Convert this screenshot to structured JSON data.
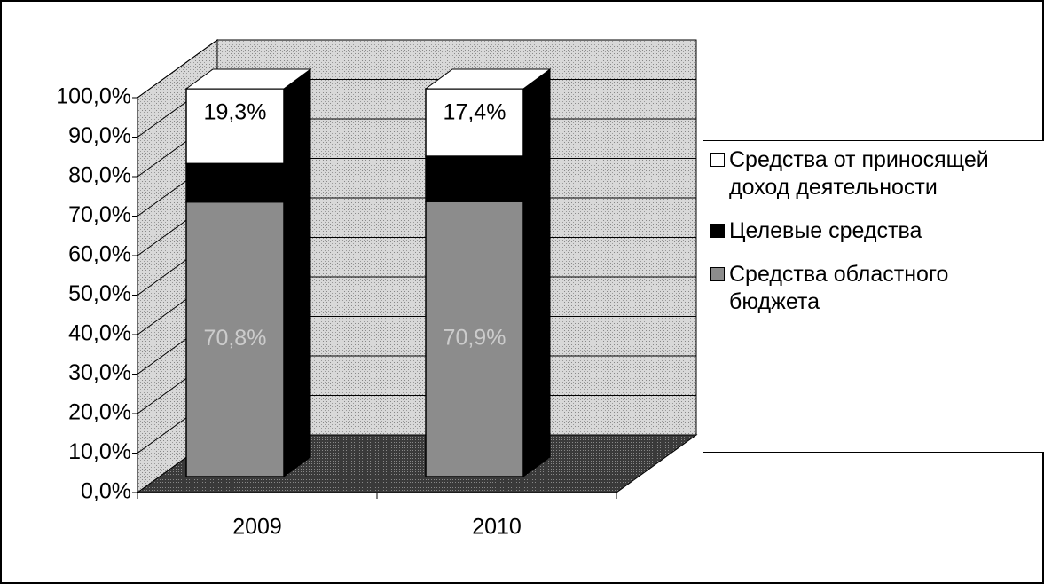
{
  "chart_data": {
    "type": "bar3d_stacked",
    "categories": [
      "2009",
      "2010"
    ],
    "series": [
      {
        "name": "Средства областного бюджета",
        "color": "#8c8c8c",
        "values": [
          70.8,
          70.9
        ],
        "value_labels": [
          "70,8%",
          "70,9%"
        ]
      },
      {
        "name": "Целевые средства",
        "color": "#000000",
        "values": [
          9.9,
          11.7
        ]
      },
      {
        "name": "Средства от приносящей доход деятельности",
        "color": "#ffffff",
        "values": [
          19.3,
          17.4
        ],
        "value_labels": [
          "19,3%",
          "17,4%"
        ]
      }
    ],
    "ylim": [
      0,
      100
    ],
    "yticks": [
      {
        "value": 0,
        "label": "0,0%"
      },
      {
        "value": 10,
        "label": "10,0%"
      },
      {
        "value": 20,
        "label": "20,0%"
      },
      {
        "value": 30,
        "label": "30,0%"
      },
      {
        "value": 40,
        "label": "40,0%"
      },
      {
        "value": 50,
        "label": "50,0%"
      },
      {
        "value": 60,
        "label": "60,0%"
      },
      {
        "value": 70,
        "label": "70,0%"
      },
      {
        "value": 80,
        "label": "80,0%"
      },
      {
        "value": 90,
        "label": "90,0%"
      },
      {
        "value": 100,
        "label": "100,0%"
      }
    ],
    "grid": true,
    "legend": "right"
  }
}
